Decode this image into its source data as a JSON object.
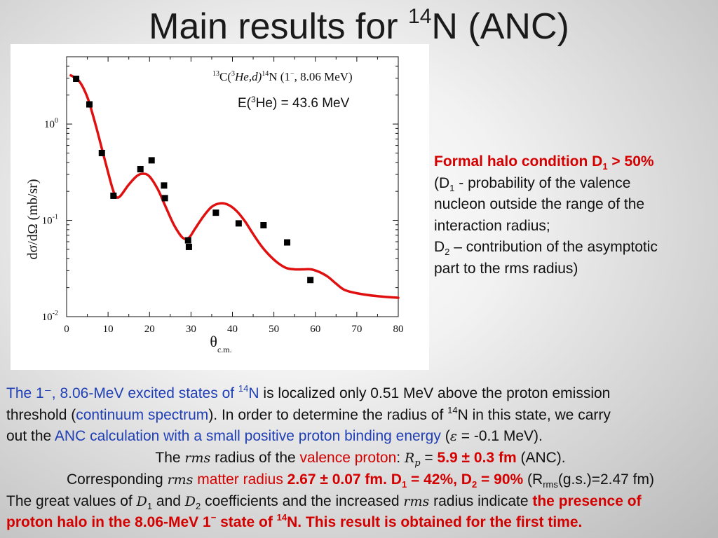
{
  "title": {
    "main": "Main results for ",
    "sup": "14",
    "rest": "N (ANC)"
  },
  "plot": {
    "reaction_part1": "13",
    "reaction_part2": "C(",
    "reaction_part3": "3",
    "reaction_part4": "He,d)",
    "reaction_part5": "14",
    "reaction_part6": "N (1",
    "reaction_part7": "−",
    "reaction_part8": ", 8.06 MeV)",
    "energy_label_pre": "E(",
    "energy_label_sup": "3",
    "energy_label_post": "He) = 43.6 MeV",
    "ylabel": "dσ/dΩ (mb/sr)",
    "xlabel_main": "θ",
    "xlabel_sub": "c.m."
  },
  "chart_data": {
    "type": "scatter",
    "yscale": "log",
    "xlim": [
      0,
      80
    ],
    "ylim": [
      0.01,
      5
    ],
    "x_ticks": [
      "0",
      "10",
      "20",
      "30",
      "40",
      "50",
      "60",
      "70",
      "80"
    ],
    "y_ticks": [
      {
        "base": "10",
        "exp": "0",
        "value": 1
      },
      {
        "base": "10",
        "exp": "-1",
        "value": 0.1
      },
      {
        "base": "10",
        "exp": "-2",
        "value": 0.01
      }
    ],
    "series": [
      {
        "kind": "points",
        "color": "#000000",
        "x": [
          2.3,
          5.5,
          8.5,
          11.3,
          17.8,
          20.5,
          23.5,
          23.7,
          29.3,
          29.5,
          36.0,
          41.5,
          47.5,
          53.2,
          58.8
        ],
        "y": [
          2.95,
          1.6,
          0.5,
          0.18,
          0.34,
          0.42,
          0.23,
          0.17,
          0.062,
          0.053,
          0.12,
          0.093,
          0.089,
          0.059,
          0.024
        ]
      },
      {
        "kind": "line",
        "color": "#e01010",
        "x": [
          1,
          3,
          5,
          7,
          9,
          11,
          12,
          13,
          15,
          17,
          18.5,
          20,
          22,
          24,
          26,
          28,
          29.5,
          31,
          33,
          35,
          37,
          39,
          41,
          43,
          45,
          47,
          49,
          51,
          53,
          55,
          57,
          59,
          61,
          63,
          65,
          67,
          70,
          75,
          80
        ],
        "y": [
          3.2,
          2.8,
          1.9,
          0.98,
          0.46,
          0.22,
          0.175,
          0.18,
          0.235,
          0.29,
          0.305,
          0.285,
          0.21,
          0.135,
          0.088,
          0.066,
          0.066,
          0.082,
          0.11,
          0.138,
          0.15,
          0.145,
          0.125,
          0.098,
          0.072,
          0.054,
          0.043,
          0.036,
          0.032,
          0.031,
          0.031,
          0.031,
          0.029,
          0.026,
          0.022,
          0.019,
          0.0175,
          0.0163,
          0.0157
        ]
      }
    ]
  },
  "side_note": {
    "head_a": "Formal halo condition D",
    "head_sub": "1",
    "head_b": " > 50%",
    "l1_a": "(D",
    "l1_sub": "1",
    "l1_b": " - probability of the valence",
    "l2": "nucleon outside the range of the",
    "l3": "interaction radius;",
    "l4_a": "D",
    "l4_sub": "2",
    "l4_b": " – contribution of the asymptotic",
    "l5": "part to the rms radius)"
  },
  "bottom": {
    "p1_blue": "The 1⁻, 8.06-MeV excited states of ",
    "p1_sup": "14",
    "p1_blue2": "N",
    "p1_rest": " is localized only 0.51 MeV above the proton emission",
    "p2_a": "threshold (",
    "p2_blue": "continuum spectrum",
    "p2_b": "). In order to determine the radius of ",
    "p2_sup": "14",
    "p2_c": "N in this state, we carry",
    "p3_a": "out the ",
    "p3_blue": "ANC calculation with a small positive proton binding energy",
    "p3_b": " (",
    "p3_eps": "ε",
    "p3_c": " = -0.1 MeV).",
    "p4_a": "The ",
    "p4_rms": "rms",
    "p4_b": " radius of the ",
    "p4_red": "valence proton",
    "p4_c": ": ",
    "p4_R": "R",
    "p4_Rsub": "p",
    "p4_d": " = ",
    "p4_val": "5.9 ± 0.3 fm",
    "p4_e": " (ANC).",
    "p5_a": "Corresponding ",
    "p5_rms": "rms",
    "p5_red": " matter radius",
    "p5_b": " 2.67 ± 0.07 fm. D",
    "p5_sub1": "1",
    "p5_c": " = 42%, D",
    "p5_sub2": "2",
    "p5_d": " = 90%",
    "p5_e": " (R",
    "p5_sub3": "rms",
    "p5_f": "(g.s.)=2.47 fm)",
    "p6_a": "The great values of ",
    "p6_D1": "D",
    "p6_sub1": "1",
    "p6_b": " and ",
    "p6_D2": "D",
    "p6_sub2": "2",
    "p6_c": " coefficients and the increased ",
    "p6_rms": "rms",
    "p6_d": " radius indicate ",
    "p6_red": "the presence of",
    "p7_a": "proton halo in the 8.06-MeV 1",
    "p7_sup": "−",
    "p7_b": " state of ",
    "p7_sup2": "14",
    "p7_c": "N. This result is obtained for the first time."
  }
}
